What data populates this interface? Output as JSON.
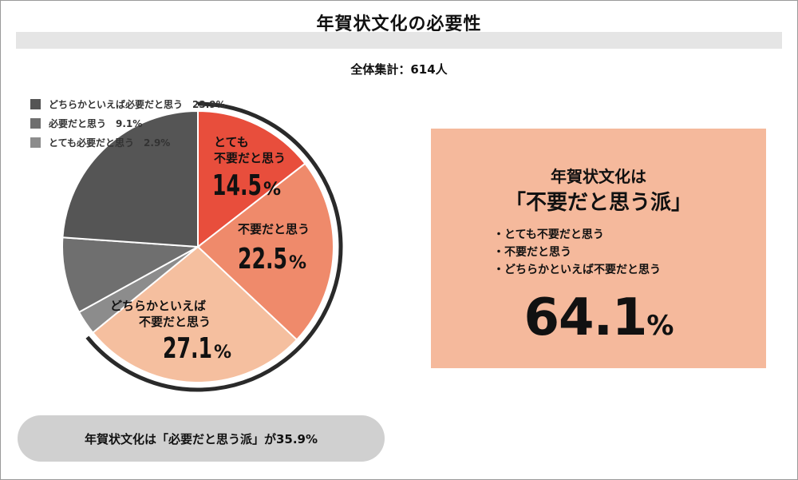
{
  "header": {
    "title": "年賀状文化の必要性",
    "total_label": "全体集計：614人"
  },
  "legend": [
    {
      "label": "どちらかといえば必要だと思う　23.9%",
      "color": "#555555"
    },
    {
      "label": "必要だと思う　9.1%",
      "color": "#6f6f6f"
    },
    {
      "label": "とても必要だと思う　2.9%",
      "color": "#8c8c8c"
    }
  ],
  "slice_labels": {
    "s1": {
      "line1": "とても",
      "line2": "不要だと思う",
      "value": "14.5",
      "pct": "%"
    },
    "s2": {
      "line1": "不要だと思う",
      "value": "22.5",
      "pct": "%"
    },
    "s3": {
      "line1": "どちらかといえば",
      "line2": "不要だと思う",
      "value": "27.1",
      "pct": "%"
    }
  },
  "chart_data": {
    "type": "pie",
    "title": "年賀状文化の必要性",
    "total": "全体集計：614人",
    "slices": [
      {
        "label": "とても不要だと思う",
        "value": 14.5,
        "color": "#e84e3c"
      },
      {
        "label": "不要だと思う",
        "value": 22.5,
        "color": "#ef8a6b"
      },
      {
        "label": "どちらかといえば不要だと思う",
        "value": 27.1,
        "color": "#f5bf9f"
      },
      {
        "label": "とても必要だと思う",
        "value": 2.9,
        "color": "#8c8c8c"
      },
      {
        "label": "必要だと思う",
        "value": 9.1,
        "color": "#6f6f6f"
      },
      {
        "label": "どちらかといえば必要だと思う",
        "value": 23.9,
        "color": "#555555"
      }
    ]
  },
  "summary_box": {
    "title": "年賀状文化は",
    "subtitle": "「不要だと思う派」",
    "items": [
      "とても不要だと思う",
      "不要だと思う",
      "どちらかといえば不要だと思う"
    ],
    "value": "64.1",
    "pct": "%",
    "bg_color": "#f5b99c"
  },
  "footer_pill": {
    "text": "年賀状文化は「必要だと思う派」が35.9%"
  }
}
